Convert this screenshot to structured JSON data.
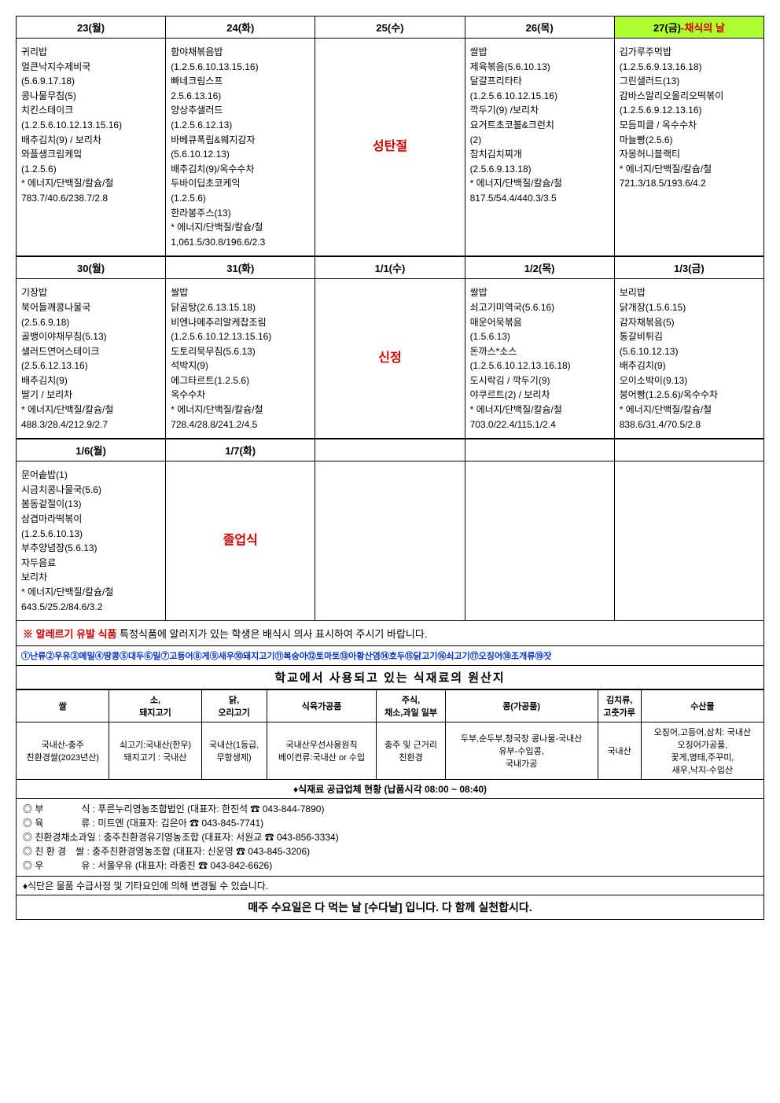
{
  "week1": {
    "headers": [
      "23(월)",
      "24(화)",
      "25(수)",
      "26(목)"
    ],
    "special_header": {
      "black": "27(금)",
      "red": "-채식의 날"
    },
    "cells": [
      "귀리밥\n얼큰낙지수제비국\n(5.6.9.17.18)\n콩나물무침(5)\n치킨스테이크\n(1.2.5.6.10.12.13.15.16)\n배추김치(9) / 보리차\n와플생크림케잌\n(1.2.5.6)\n* 에너지/단백질/칼슘/철\n783.7/40.6/238.7/2.8",
      "함야채볶음밥\n(1.2.5.6.10.13.15.16)\n빠네크림스프\n2.5.6.13.16)\n양상추샐러드\n(1.2.5.6.12.13)\n바베큐폭립&웨지감자\n(5.6.10.12.13)\n배추김치(9)/옥수수차\n두바이딥초코케익\n(1.2.5.6)\n한라봉주스(13)\n* 에너지/단백질/칼슘/철\n1,061.5/30.8/196.6/2.3",
      "성탄절",
      "쌀밥\n제육볶음(5.6.10.13)\n달걀프리타타\n(1.2.5.6.10.12.15.16)\n깍두기(9) /보리차\n요거트초코볼&크런치\n(2)\n참치김치찌개\n(2.5.6.9.13.18)\n* 에너지/단백질/칼슘/철\n817.5/54.4/440.3/3.5",
      "김가루주먹밥\n(1.2.5.6.9.13.16.18)\n그린샐러드(13)\n감바스알리오올리오떡볶이\n(1.2.5.6.9.12.13.16)\n모듬피클 / 옥수수차\n마늘빵(2.5.6)\n자몽허니블랙티\n* 에너지/단백질/칼슘/철\n721.3/18.5/193.6/4.2"
    ]
  },
  "week2": {
    "headers": [
      "30(월)",
      "31(화)",
      "1/1(수)",
      "1/2(목)",
      "1/3(금)"
    ],
    "cells": [
      "기장밥\n북어들깨콩나물국\n(2.5.6.9.18)\n골뱅이야채무침(5.13)\n샐러드연어스테이크\n(2.5.6.12.13.16)\n배추김치(9)\n딸기 / 보리차\n* 에너지/단백질/칼슘/철\n488.3/28.4/212.9/2.7",
      "쌀밥\n닭곰탕(2.6.13.15.18)\n비엔나메추리알케찹조림\n(1.2.5.6.10.12.13.15.16)\n도토리묵무침(5.6.13)\n석박지(9)\n에그타르트(1.2.5.6)\n옥수수차\n* 에너지/단백질/칼슘/철\n728.4/28.8/241.2/4.5",
      "신정",
      "쌀밥\n쇠고기미역국(5.6.16)\n매운어묵볶음\n(1.5.6.13)\n돈까스*소스\n(1.2.5.6.10.12.13.16.18)\n도시락김 / 깍두기(9)\n야쿠르트(2) / 보리차\n* 에너지/단백질/칼슘/철\n703.0/22.4/115.1/2.4",
      "보리밥\n닭개장(1.5.6.15)\n감자채볶음(5)\n통갈비튀김\n(5.6.10.12.13)\n배추김치(9)\n오이소박이(9.13)\n붕어빵(1.2.5.6)/옥수수차\n* 에너지/단백질/칼슘/철\n838.6/31.4/70.5/2.8"
    ]
  },
  "week3": {
    "headers": [
      "1/6(월)",
      "1/7(화)",
      "",
      "",
      ""
    ],
    "cells": [
      "문어솥밥(1)\n시금치콩나물국(5.6)\n봄동겉절이(13)\n삼겹마라떡볶이\n(1.2.5.6.10.13)\n부추양념장(5.6.13)\n자두음료\n보리차\n* 에너지/단백질/칼슘/철\n643.5/25.2/84.6/3.2",
      "졸업식",
      "",
      "",
      ""
    ]
  },
  "allergy": {
    "label": "※ 알레르기 유발 식품",
    "text": " 특정식품에 알러지가 있는 학생은 배식시 의사 표시하여 주시기 바랍니다."
  },
  "allergens": "①난류②우유③메밀④땅콩⑤대두⑥밀⑦고등어⑧게⑨새우⑩돼지고기⑪복숭아⑫토마토⑬아황산염⑭호두⑮닭고기⑯쇠고기⑰오징어⑱조개류⑲잣",
  "origin_title": "학교에서 사용되고 있는 식재료의 원산지",
  "origin_headers": [
    "쌀",
    "소,\n돼지고기",
    "닭,\n오리고기",
    "식육가공품",
    "주식,\n채소,과일 일부",
    "콩(가공품)",
    "김치류,\n고춧가루",
    "수산물"
  ],
  "origin_values": [
    "국내산-충주\n친환경쌀(2023년산)",
    "쇠고기:국내산(한우)\n돼지고기 : 국내산",
    "국내산(1등급,\n무항생제)",
    "국내산우선사용원칙\n베이컨류:국내산 or 수입",
    "충주 및 근거리\n친환경",
    "두부,순두부,청국장 콩나물-국내산\n유부-수입콩,\n국내가공",
    "국내산",
    "오징어,고등어,삼치: 국내산\n오징어가공품,\n꽃게,명태,주꾸미,\n새우,낙지-수입산"
  ],
  "supplier_header": "♦식재료 공급업체 현황 (납품시각 08:00 ~ 08:40)",
  "suppliers": [
    "◎ 부　　　　식 : 푸른누리영농조합법인 (대표자: 한진석 ☎ 043-844-7890)",
    "◎ 육　　　　류 : 미트엔 (대표자: 김은아 ☎ 043-845-7741)",
    "◎ 친환경채소과일 : 충주친환경유기영농조합 (대표자: 서원교 ☎ 043-856-3334)",
    "◎ 친 환 경　쌀 : 충주친환경영농조합 (대표자: 신운영 ☎ 043-845-3206)",
    "◎ 우　　　　유 : 서울우유 (대표자: 라종진 ☎ 043-842-6626)"
  ],
  "change_note": "♦식단은 물품 수급사정 및 기타요인에 의해 변경될 수 있습니다.",
  "footer": "매주 수요일은 다 먹는 날 [수다날] 입니다. 다 함께 실천합시다."
}
